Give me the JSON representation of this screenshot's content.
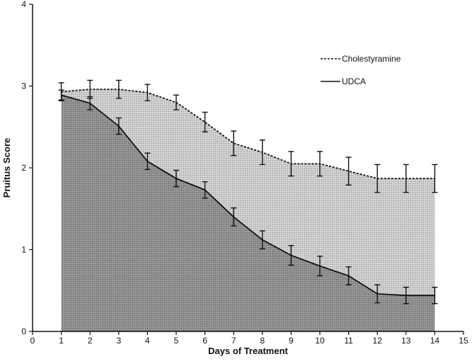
{
  "chart_data": {
    "type": "area",
    "title": "",
    "xlabel": "Days of Treatment",
    "ylabel": "Pruitus Score",
    "xlim": [
      0,
      15
    ],
    "ylim": [
      0,
      4
    ],
    "xticks": [
      0,
      1,
      2,
      3,
      4,
      5,
      6,
      7,
      8,
      9,
      10,
      11,
      12,
      13,
      14,
      15
    ],
    "yticks": [
      0,
      1,
      2,
      3,
      4
    ],
    "grid": false,
    "legend_position": "top-right",
    "x": [
      1,
      2,
      3,
      4,
      5,
      6,
      7,
      8,
      9,
      10,
      11,
      12,
      13,
      14
    ],
    "series": [
      {
        "name": "Cholestyramine",
        "line_style": "dashed",
        "values": [
          2.93,
          2.96,
          2.96,
          2.92,
          2.8,
          2.56,
          2.3,
          2.19,
          2.05,
          2.05,
          1.96,
          1.87,
          1.87,
          1.87
        ],
        "error": [
          0.11,
          0.11,
          0.11,
          0.1,
          0.09,
          0.12,
          0.15,
          0.15,
          0.15,
          0.15,
          0.17,
          0.17,
          0.17,
          0.17
        ]
      },
      {
        "name": "UDCA",
        "line_style": "solid",
        "values": [
          2.89,
          2.79,
          2.51,
          2.08,
          1.87,
          1.73,
          1.4,
          1.12,
          0.93,
          0.8,
          0.68,
          0.46,
          0.44,
          0.44
        ],
        "error": [
          0.06,
          0.08,
          0.1,
          0.1,
          0.1,
          0.1,
          0.11,
          0.11,
          0.12,
          0.12,
          0.11,
          0.11,
          0.1,
          0.1
        ]
      }
    ],
    "colors": {
      "upper_fill": "#c8c8c8",
      "lower_fill": "#8c8c8c",
      "line": "#111111"
    }
  }
}
